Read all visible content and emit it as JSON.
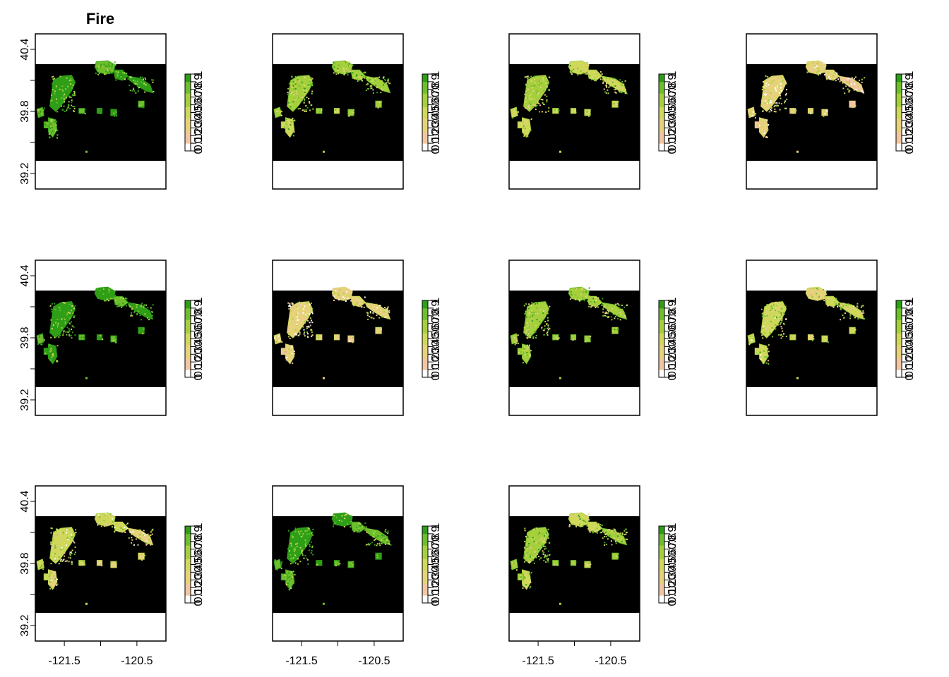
{
  "figure": {
    "title": "Fire",
    "colors": {
      "background": "#000000",
      "frame": "#000000",
      "ramp": [
        "#ffffff",
        "#f2c6a0",
        "#e6d27a",
        "#cfd85a",
        "#a6cf3c",
        "#6fbf2c",
        "#2e9e17"
      ]
    }
  },
  "chart_data": {
    "type": "heatmap",
    "panel_count": 11,
    "layout": {
      "rows": 3,
      "cols": 4
    },
    "xlim": [
      -121.9,
      -120.1
    ],
    "ylim": [
      39.05,
      40.55
    ],
    "map_extent": {
      "x": [
        -121.9,
        -120.1
      ],
      "y": [
        39.35,
        40.28
      ]
    },
    "x_ticks": [
      -121.5,
      -121.0,
      -120.5
    ],
    "x_tick_labels": [
      "-121.5",
      "",
      "-120.5"
    ],
    "y_ticks": [
      39.2,
      39.5,
      39.8,
      40.1,
      40.4
    ],
    "y_tick_labels": [
      "39.2",
      "",
      "39.8",
      "",
      "40.4"
    ],
    "legend": {
      "range": [
        0,
        1
      ],
      "ticks": [
        0,
        0.1,
        0.2,
        0.3,
        0.4,
        0.5,
        0.6,
        0.7,
        0.8,
        0.9,
        1
      ],
      "tick_labels": [
        "0",
        "0.1",
        "0.2",
        "0.3",
        "0.4",
        "0.5",
        "0.6",
        "0.7",
        "0.8",
        "0.9",
        "1"
      ],
      "placement": "right of each panel"
    },
    "panel_mean_values": [
      0.9,
      0.65,
      0.55,
      0.3,
      0.9,
      0.3,
      0.6,
      0.5,
      0.45,
      0.85,
      0.6
    ]
  }
}
